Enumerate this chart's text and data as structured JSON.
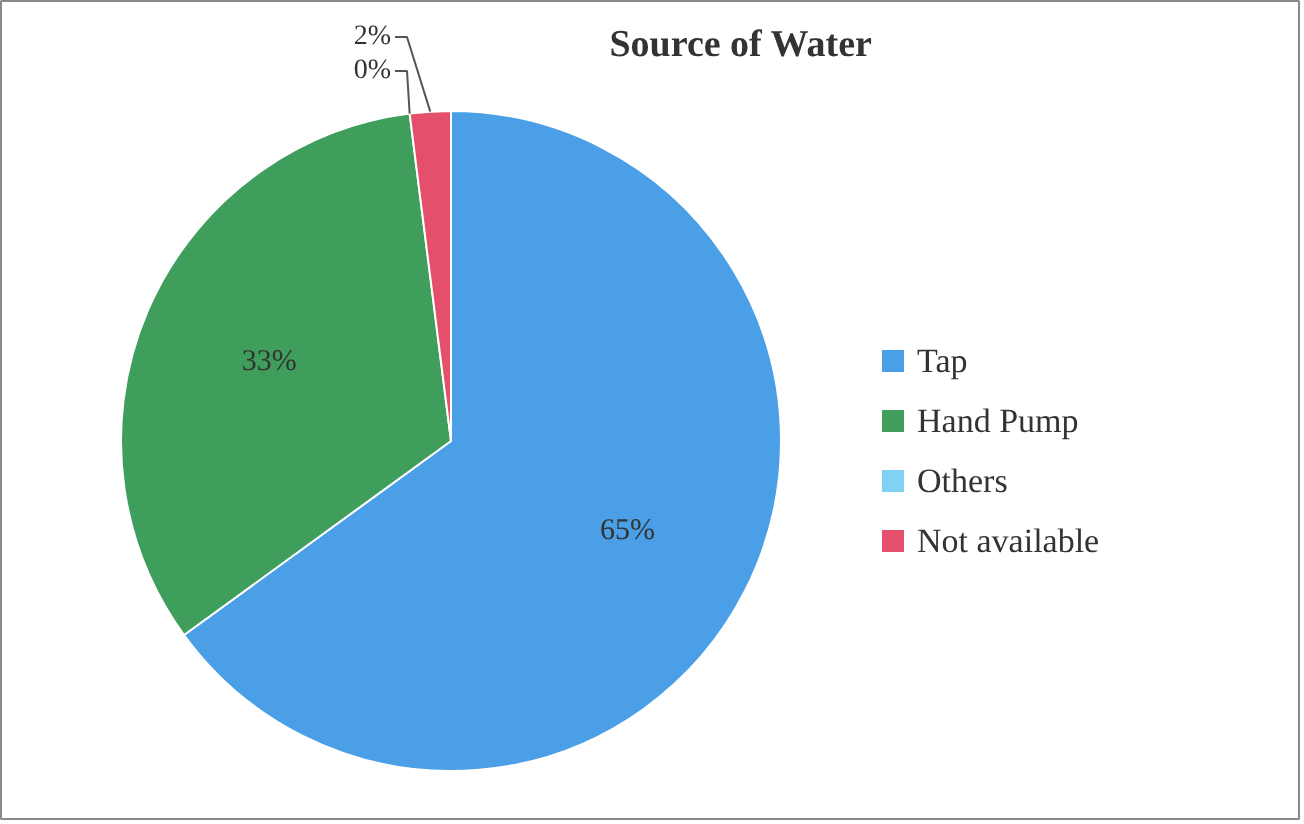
{
  "chart_data": {
    "type": "pie",
    "title": "Source of Water",
    "categories": [
      "Tap",
      "Hand Pump",
      "Others",
      "Not available"
    ],
    "values": [
      65,
      33,
      0,
      2
    ],
    "colors": [
      "#4a9fe6",
      "#3f9e5c",
      "#80d2f2",
      "#e4506c"
    ],
    "value_labels": [
      "65%",
      "33%",
      "0%",
      "2%"
    ],
    "legend": "right"
  }
}
